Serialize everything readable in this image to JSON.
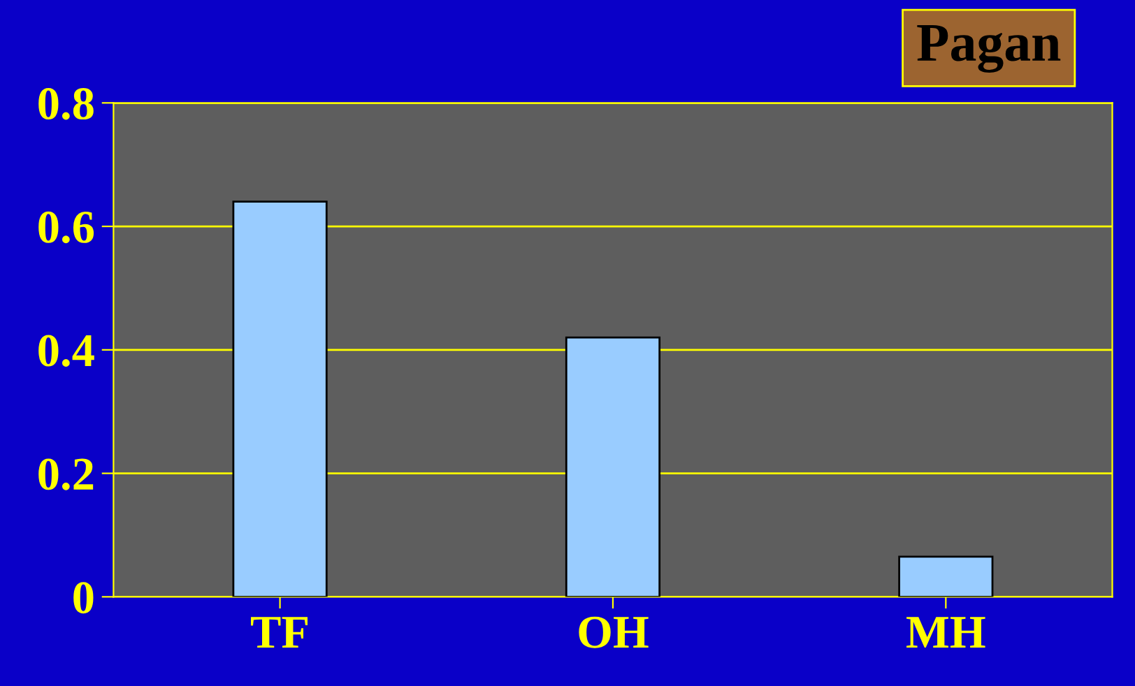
{
  "chart_data": {
    "type": "bar",
    "title": "Pagan",
    "categories": [
      "TF",
      "OH",
      "MH"
    ],
    "values": [
      0.64,
      0.42,
      0.065
    ],
    "color": "#99ccff",
    "ylim": [
      0,
      0.8
    ],
    "yticks": [
      0,
      0.2,
      0.4,
      0.6,
      0.8
    ],
    "grid": "y"
  }
}
